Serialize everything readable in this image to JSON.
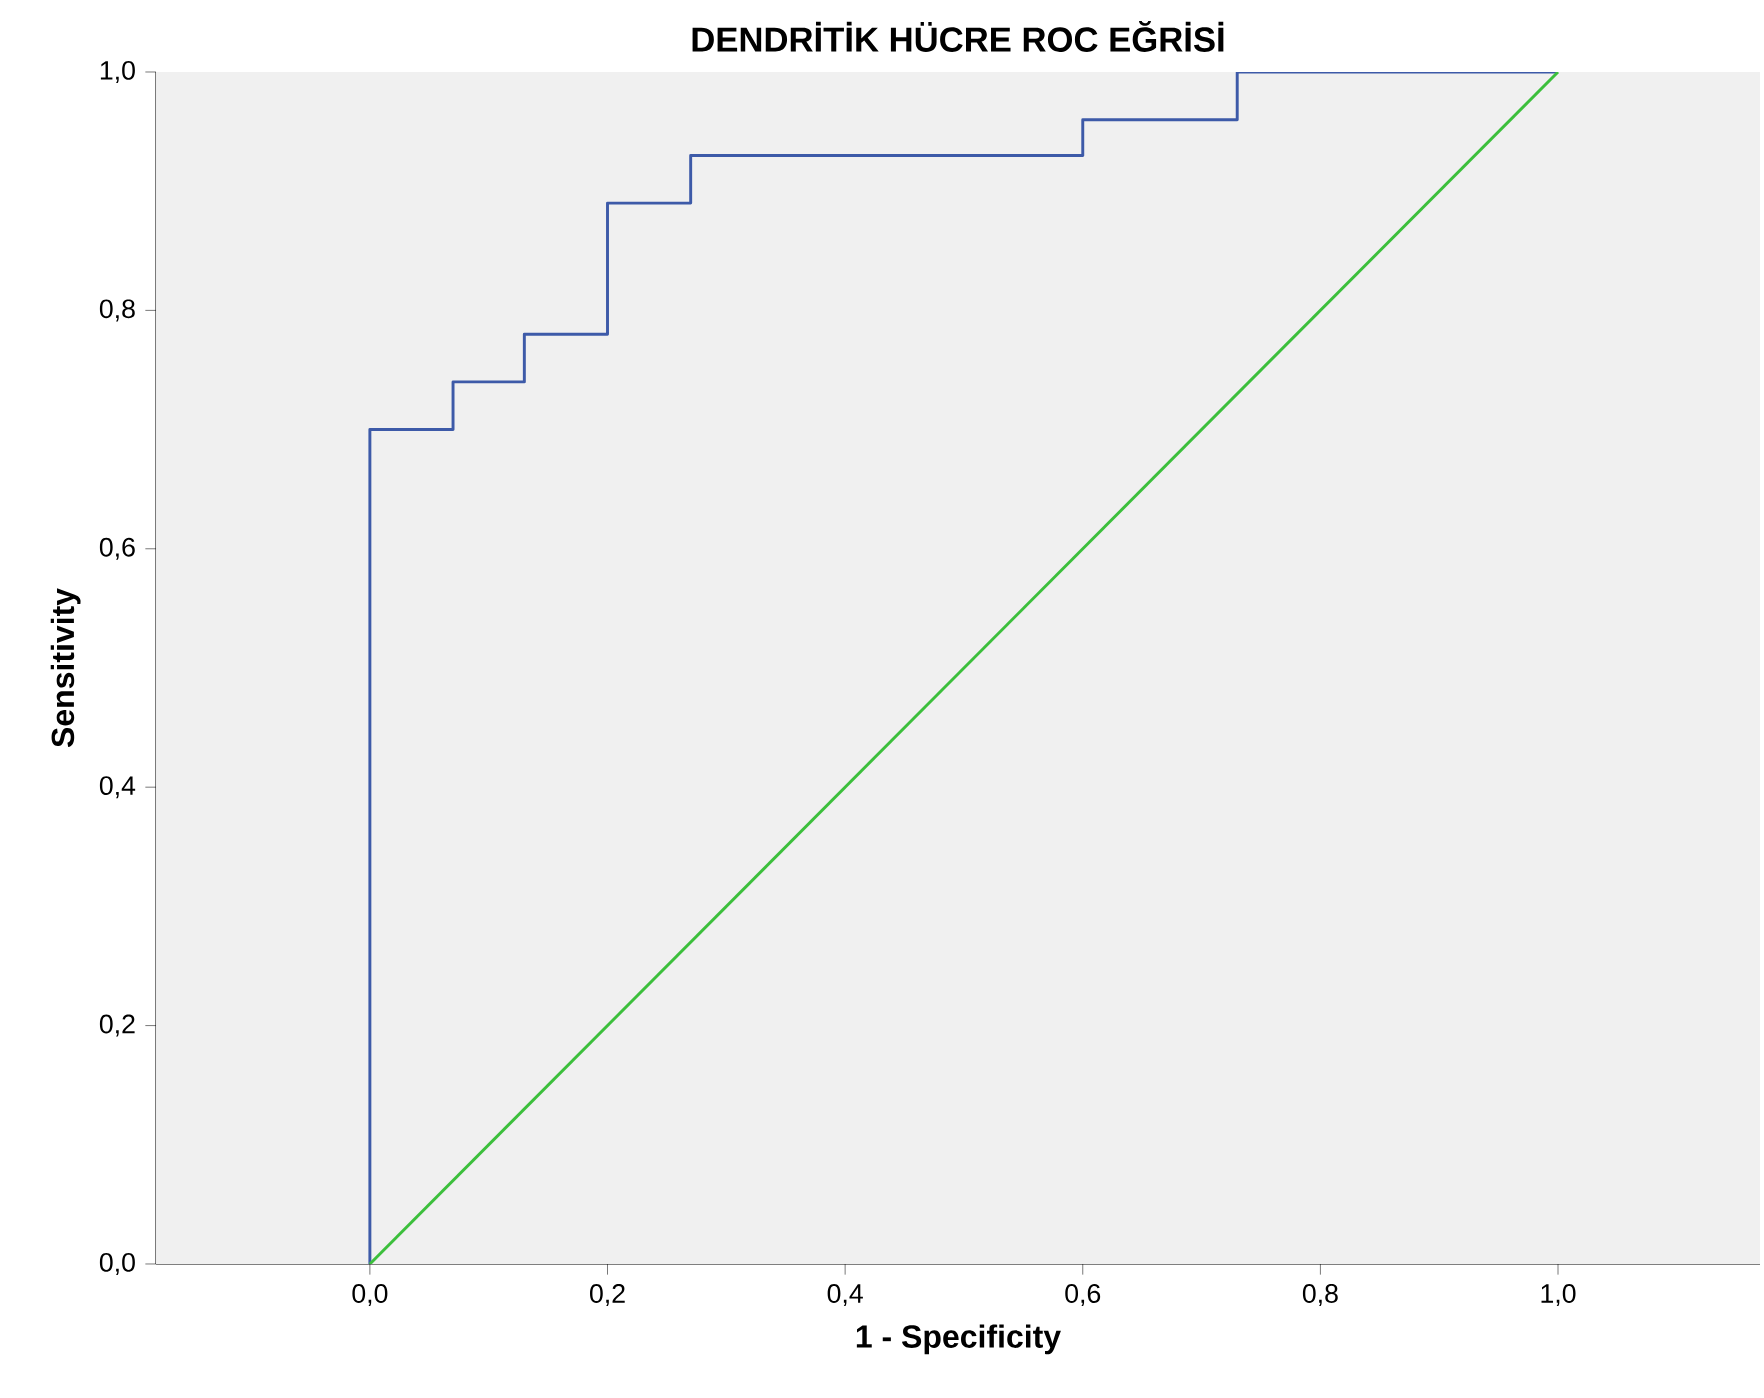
{
  "chart_data": {
    "type": "line",
    "title": "DENDRİTİK HÜCRE ROC EĞRİSİ",
    "xlabel": "1 - Specificity",
    "ylabel": "Sensitivity",
    "series": [
      {
        "type": "step",
        "color": "#3d5aa8",
        "x": [
          0,
          0,
          0.07,
          0.13,
          0.2,
          0.27,
          0.6,
          0.73,
          1
        ],
        "values": [
          0,
          0.7,
          0.74,
          0.78,
          0.89,
          0.93,
          0.96,
          1,
          1
        ]
      },
      {
        "color": "#3cbf3c",
        "x": [
          0,
          1
        ],
        "values": [
          0,
          1
        ]
      }
    ],
    "xlim": [
      -0.18,
      1.17
    ],
    "ylim": [
      0,
      1
    ],
    "xticks": [
      {
        "value": 0,
        "label": "0,0"
      },
      {
        "value": 0.2,
        "label": "0,2"
      },
      {
        "value": 0.4,
        "label": "0,4"
      },
      {
        "value": 0.6,
        "label": "0,6"
      },
      {
        "value": 0.8,
        "label": "0,8"
      },
      {
        "value": 1,
        "label": "1,0"
      }
    ],
    "yticks": [
      {
        "value": 0,
        "label": "0,0"
      },
      {
        "value": 0.2,
        "label": "0,2"
      },
      {
        "value": 0.4,
        "label": "0,4"
      },
      {
        "value": 0.6,
        "label": "0,6"
      },
      {
        "value": 0.8,
        "label": "0,8"
      },
      {
        "value": 1,
        "label": "1,0"
      }
    ],
    "grid": false
  }
}
